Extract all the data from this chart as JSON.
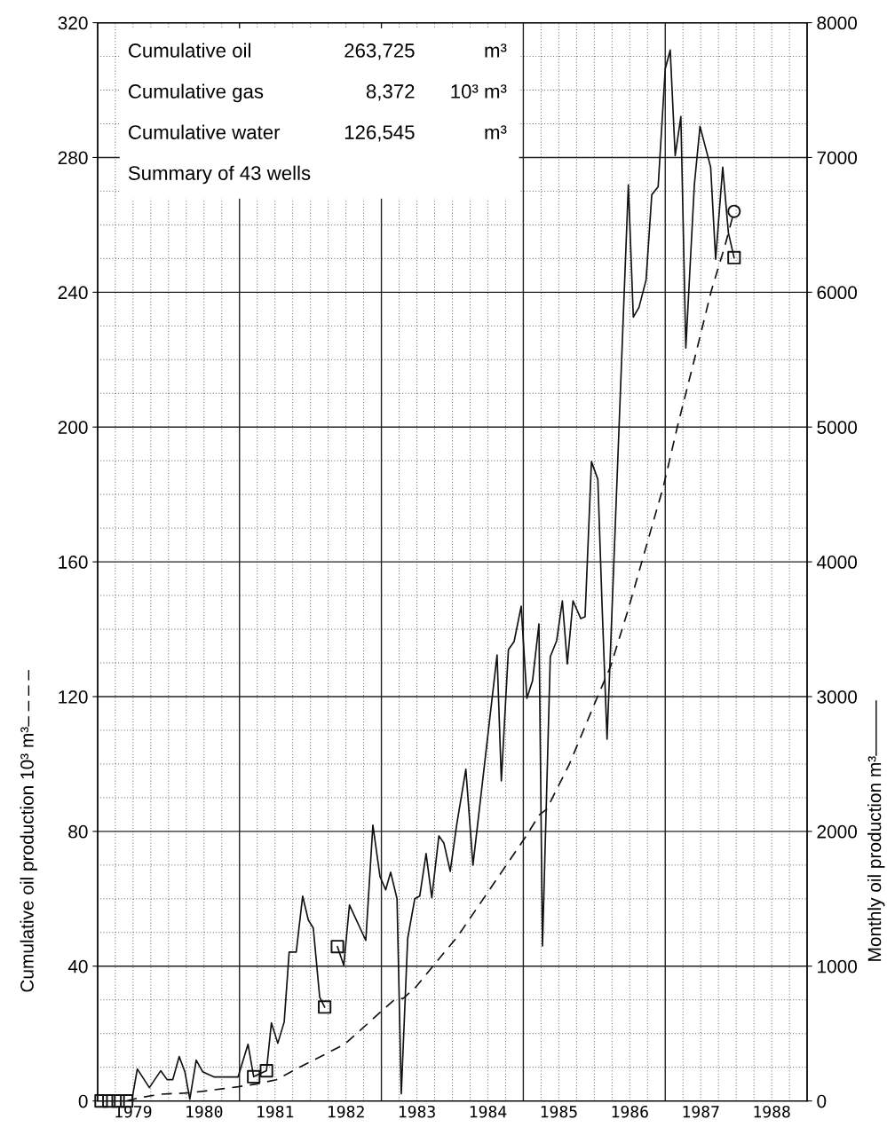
{
  "chart_data": {
    "type": "line",
    "ylabel": "Cumulative oil production 10³ m³– – – –",
    "y2label": "Monthly oil production m³———",
    "annotations": [
      "Cumulative oil",
      "263,725",
      "m³",
      "Cumulative gas",
      "8,372",
      "10³ m³",
      "Cumulative water",
      "126,545",
      "m³",
      "Summary of 43 wells"
    ],
    "xlim": [
      1979,
      1989
    ],
    "xticks": [
      {
        "value": 1979.5,
        "label": "1979"
      },
      {
        "value": 1980.5,
        "label": "1980"
      },
      {
        "value": 1981.5,
        "label": "1981"
      },
      {
        "value": 1982.5,
        "label": "1982"
      },
      {
        "value": 1983.5,
        "label": "1983"
      },
      {
        "value": 1984.5,
        "label": "1984"
      },
      {
        "value": 1985.5,
        "label": "1985"
      },
      {
        "value": 1986.5,
        "label": "1986"
      },
      {
        "value": 1987.5,
        "label": "1987"
      },
      {
        "value": 1988.5,
        "label": "1988"
      }
    ],
    "ylim": [
      0,
      320
    ],
    "yticks": [
      0,
      40,
      80,
      120,
      160,
      200,
      240,
      280,
      320
    ],
    "y2lim": [
      0,
      8000
    ],
    "y2ticks": [
      0,
      1000,
      2000,
      3000,
      4000,
      5000,
      6000,
      7000,
      8000
    ],
    "grid": true,
    "series": [
      {
        "axis": "y2",
        "color": "#111111",
        "line_style": "solid",
        "marker": "none",
        "x": [
          1979.49,
          1979.56,
          1979.73,
          1979.89,
          1979.98,
          1980.06,
          1980.15,
          1980.23,
          1980.3,
          1980.39,
          1980.48,
          1980.64,
          1980.98,
          1981.12,
          1981.2,
          1981.38,
          1981.45,
          1981.54,
          1981.63,
          1981.7,
          1981.8,
          1981.89,
          1981.97,
          1982.04,
          1982.13,
          1982.2,
          1982.29,
          1982.38,
          1982.47,
          1982.55,
          1982.78,
          1982.88,
          1982.98,
          1983.06,
          1983.13,
          1983.22,
          1983.28,
          1983.37,
          1983.47,
          1983.54,
          1983.63,
          1983.71,
          1983.81,
          1983.88,
          1983.97,
          1984.06,
          1984.19,
          1984.29,
          1984.56,
          1984.63,
          1984.69,
          1984.79,
          1984.87,
          1984.97,
          1985.05,
          1985.13,
          1985.22,
          1985.27,
          1985.38,
          1985.47,
          1985.55,
          1985.62,
          1985.7,
          1985.81,
          1985.87,
          1985.96,
          1986.05,
          1986.11,
          1986.18,
          1986.48,
          1986.55,
          1986.63,
          1986.73,
          1986.81,
          1986.9,
          1987.0,
          1987.07,
          1987.14,
          1987.22,
          1987.29,
          1987.41,
          1987.49,
          1987.64,
          1987.71,
          1987.81,
          1987.89,
          1987.97
        ],
        "values": [
          26,
          237,
          99,
          224,
          158,
          158,
          329,
          217,
          13,
          303,
          217,
          178,
          178,
          421,
          180,
          224,
          579,
          428,
          586,
          1105,
          1105,
          1520,
          1342,
          1283,
          770,
          697,
          null,
          1145,
          1007,
          1454,
          1191,
          2046,
          1665,
          1566,
          1697,
          1500,
          53,
          1204,
          1500,
          1520,
          1836,
          1507,
          1967,
          1914,
          1704,
          2046,
          2461,
          1750,
          2987,
          3309,
          2375,
          3349,
          3408,
          3671,
          2987,
          3118,
          3540,
          1150,
          3296,
          3415,
          3711,
          3243,
          3711,
          3579,
          3592,
          4744,
          4612,
          3671,
          2684,
          6796,
          5816,
          5888,
          6092,
          6724,
          6783,
          7658,
          7797,
          7013,
          7303,
          5586,
          6796,
          7231,
          6928,
          6244,
          6928,
          6441,
          6257
        ]
      },
      {
        "axis": "y",
        "color": "#111111",
        "line_style": "dashed",
        "marker": "none",
        "x": [
          1979.41,
          1979.6,
          1979.89,
          1980.3,
          1980.79,
          1980.98,
          1981.23,
          1981.52,
          1981.8,
          1982.48,
          1983.02,
          1983.18,
          1983.31,
          1983.48,
          1984.08,
          1985.02,
          1985.23,
          1985.33,
          1985.65,
          1986.02,
          1986.23,
          1986.48,
          1986.67,
          1986.9,
          1986.97,
          1987.17,
          1987.41,
          1987.65,
          1987.84,
          1987.97
        ],
        "values": [
          0,
          1,
          2,
          2.4,
          3.7,
          4.2,
          5,
          6.3,
          9.5,
          16.8,
          27,
          30,
          30.5,
          33.7,
          49,
          78,
          85,
          86.6,
          100,
          118.7,
          129,
          146,
          160,
          177,
          182,
          200,
          220,
          240.5,
          253.7,
          264
        ]
      },
      {
        "type": "scatter",
        "axis": "y2",
        "color": "#111111",
        "marker": "square",
        "x": [
          1979.05,
          1979.16,
          1979.29,
          1979.41,
          1981.2,
          1981.38,
          1982.2,
          1982.38,
          1987.97
        ],
        "values": [
          0,
          0,
          0,
          0,
          180,
          224,
          697,
          1145,
          6257
        ]
      },
      {
        "type": "scatter",
        "axis": "y",
        "color": "#111111",
        "marker": "circle",
        "x": [
          1987.97
        ],
        "values": [
          264
        ]
      }
    ]
  }
}
